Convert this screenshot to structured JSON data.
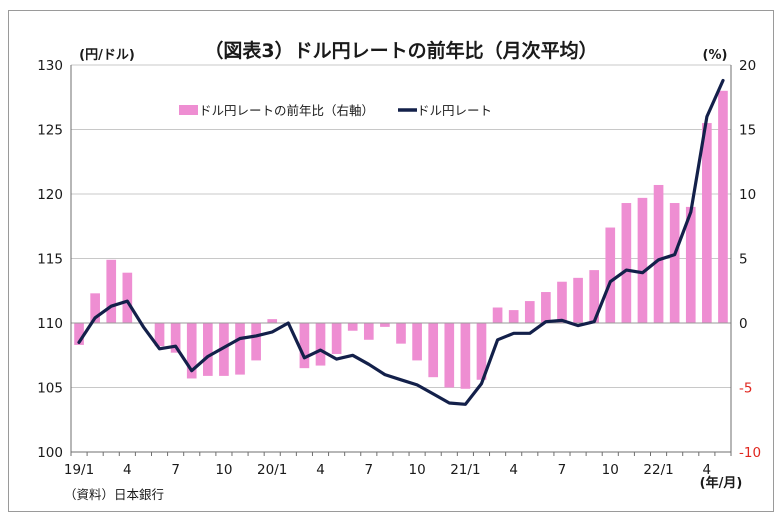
{
  "chart_data": {
    "type": "bar",
    "title": "（図表3）ドル円レートの前年比（月次平均）",
    "left_unit": "(円/ドル)",
    "right_unit": "(%)",
    "x_unit": "(年/月)",
    "source": "（資料）日本銀行",
    "left_axis": {
      "min": 100,
      "max": 130,
      "step": 5,
      "ticks": [
        "100",
        "105",
        "110",
        "115",
        "120",
        "125",
        "130"
      ]
    },
    "right_axis": {
      "min": -10,
      "max": 20,
      "step": 5,
      "ticks": [
        "-10",
        "-5",
        "0",
        "5",
        "10",
        "15",
        "20"
      ]
    },
    "x_tick_labels": [
      {
        "i": 0,
        "label": "19/1"
      },
      {
        "i": 3,
        "label": "4"
      },
      {
        "i": 6,
        "label": "7"
      },
      {
        "i": 9,
        "label": "10"
      },
      {
        "i": 12,
        "label": "20/1"
      },
      {
        "i": 15,
        "label": "4"
      },
      {
        "i": 18,
        "label": "7"
      },
      {
        "i": 21,
        "label": "10"
      },
      {
        "i": 24,
        "label": "21/1"
      },
      {
        "i": 27,
        "label": "4"
      },
      {
        "i": 30,
        "label": "7"
      },
      {
        "i": 33,
        "label": "10"
      },
      {
        "i": 36,
        "label": "22/1"
      },
      {
        "i": 39,
        "label": "4"
      }
    ],
    "months": 41,
    "series": [
      {
        "name": "ドル円レートの前年比（右軸）",
        "kind": "bar",
        "axis": "right",
        "color": "#ee8ed2",
        "values": [
          -1.7,
          2.3,
          4.9,
          3.9,
          0.0,
          -1.8,
          -2.3,
          -4.3,
          -4.1,
          -4.1,
          -4.0,
          -2.9,
          0.3,
          0.0,
          -3.5,
          -3.3,
          -2.4,
          -0.6,
          -1.3,
          -0.3,
          -1.6,
          -2.9,
          -4.2,
          -5.0,
          -5.1,
          -4.4,
          1.2,
          1.0,
          1.7,
          2.4,
          3.2,
          3.5,
          4.1,
          7.4,
          9.3,
          9.7,
          10.7,
          9.3,
          9.0,
          15.5,
          18.0
        ]
      },
      {
        "name": "ドル円レート",
        "kind": "line",
        "axis": "left",
        "color": "#13204a",
        "values": [
          108.5,
          110.4,
          111.3,
          111.7,
          109.7,
          108.0,
          108.2,
          106.3,
          107.4,
          108.1,
          108.8,
          109.0,
          109.3,
          110.0,
          107.3,
          107.9,
          107.2,
          107.5,
          106.8,
          106.0,
          105.6,
          105.2,
          104.5,
          103.8,
          103.7,
          105.3,
          108.7,
          109.2,
          109.2,
          110.1,
          110.2,
          109.8,
          110.1,
          113.2,
          114.1,
          113.9,
          114.9,
          115.3,
          118.6,
          126.0,
          128.8
        ]
      }
    ],
    "legend": {
      "placement": "top-left"
    },
    "grid": "horizontal"
  }
}
